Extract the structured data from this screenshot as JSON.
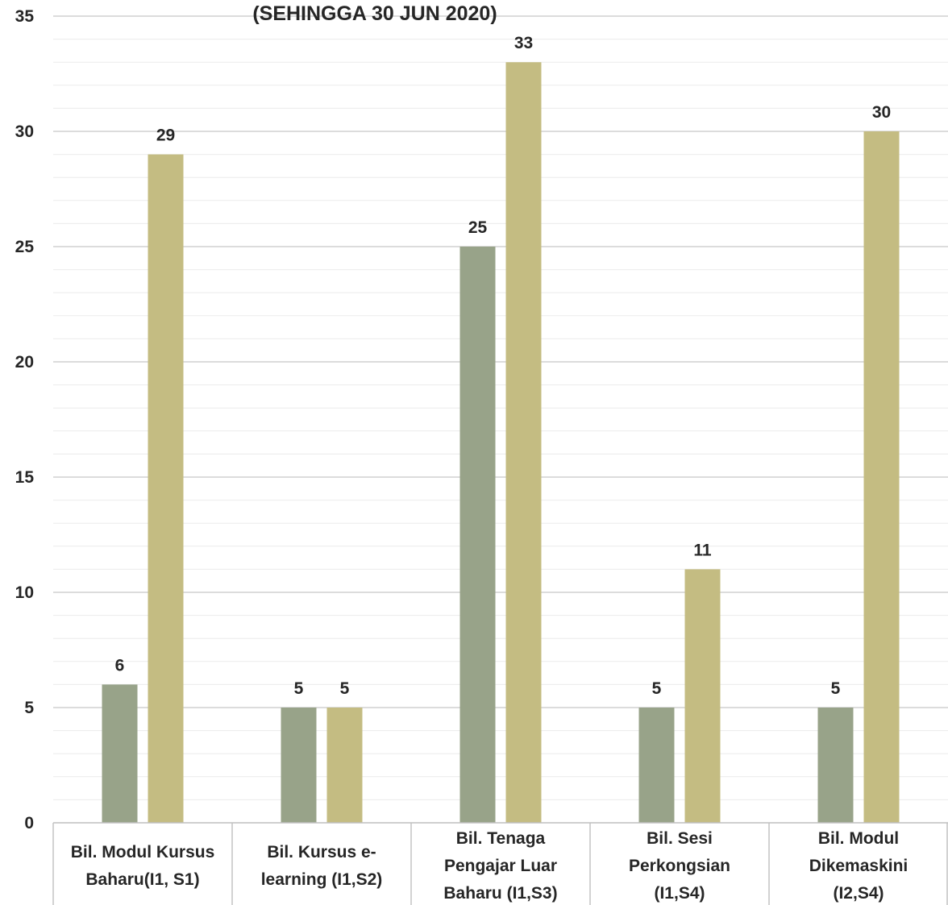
{
  "chart_data": {
    "type": "bar",
    "title": "(SEHINGGA 30 JUN 2020)",
    "categories": [
      [
        "Bil. Modul Kursus",
        "Baharu(I1, S1)"
      ],
      [
        "Bil. Kursus e-",
        "learning (I1,S2)"
      ],
      [
        "Bil. Tenaga",
        "Pengajar Luar",
        "Baharu (I1,S3)"
      ],
      [
        "Bil. Sesi",
        "Perkongsian",
        "(I1,S4)"
      ],
      [
        "Bil. Modul",
        "Dikemaskini",
        "(I2,S4)"
      ]
    ],
    "series": [
      {
        "values": [
          6,
          5,
          25,
          5,
          5
        ],
        "color": "#98a389"
      },
      {
        "values": [
          29,
          5,
          33,
          11,
          30
        ],
        "color": "#c4bc82"
      }
    ],
    "data_labels": [
      [
        "6",
        "5",
        "25",
        "5",
        "5"
      ],
      [
        "29",
        "5",
        "33",
        "11",
        "30"
      ]
    ],
    "ylim": [
      0,
      35
    ],
    "yticks": [
      0,
      5,
      10,
      15,
      20,
      25,
      30,
      35
    ],
    "ytick_labels": [
      "0",
      "5",
      "10",
      "15",
      "20",
      "25",
      "30",
      "35"
    ],
    "grid": true,
    "legend": "none",
    "xlabel": "",
    "ylabel": ""
  }
}
